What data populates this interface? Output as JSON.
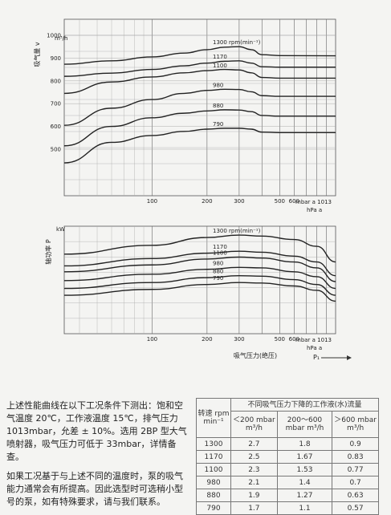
{
  "chart_data": [
    {
      "type": "line",
      "ylabel": "吸气量 v",
      "yunit": "m³/h",
      "xunit": "mbar a 1013",
      "xunit2": "hPa a",
      "yticks": [
        500,
        600,
        700,
        800,
        900,
        1000
      ],
      "xticks": [
        100,
        200,
        300,
        400,
        500,
        600,
        700,
        800,
        900,
        1000
      ],
      "xtick_labels": [
        "100",
        "200",
        "300",
        "500",
        "600"
      ],
      "series": [
        {
          "name": "1300 rpm(min⁻¹)",
          "x": [
            33,
            60,
            100,
            150,
            200,
            250,
            300,
            350,
            400,
            500,
            1013
          ],
          "y": [
            873,
            888,
            905,
            922,
            937,
            948,
            950,
            937,
            915,
            911,
            910
          ]
        },
        {
          "name": "1170",
          "x": [
            33,
            60,
            100,
            150,
            200,
            250,
            300,
            350,
            400,
            500,
            1013
          ],
          "y": [
            820,
            834,
            850,
            866,
            878,
            886,
            888,
            878,
            862,
            860,
            860
          ]
        },
        {
          "name": "1100",
          "x": [
            33,
            60,
            100,
            150,
            200,
            250,
            300,
            350,
            400,
            500,
            1013
          ],
          "y": [
            745,
            795,
            817,
            835,
            845,
            850,
            848,
            835,
            815,
            812,
            812
          ]
        },
        {
          "name": "980",
          "x": [
            33,
            60,
            100,
            150,
            200,
            250,
            300,
            350,
            400,
            500,
            1013
          ],
          "y": [
            605,
            680,
            718,
            745,
            758,
            763,
            762,
            752,
            735,
            732,
            732
          ]
        },
        {
          "name": "880",
          "x": [
            33,
            60,
            100,
            150,
            200,
            250,
            300,
            350,
            400,
            500,
            1013
          ],
          "y": [
            515,
            600,
            638,
            658,
            668,
            673,
            672,
            665,
            648,
            645,
            645
          ]
        },
        {
          "name": "790",
          "x": [
            33,
            60,
            100,
            150,
            200,
            250,
            300,
            350,
            400,
            500,
            1013
          ],
          "y": [
            440,
            530,
            560,
            578,
            588,
            592,
            592,
            588,
            575,
            573,
            573
          ]
        }
      ]
    },
    {
      "type": "line",
      "ylabel": "轴功率 P",
      "yunit": "kW",
      "xunit": "mbar a 1013",
      "xunit2": "hPa a",
      "xlabel": "吸气压力(绝压)",
      "xsymbol": "P₁",
      "xticks": [
        100,
        200,
        300,
        400,
        500,
        600,
        700,
        800,
        900,
        1000
      ],
      "xtick_labels": [
        "100",
        "200",
        "300",
        "500",
        "600"
      ],
      "series": [
        {
          "name": "1300 rpm(min⁻¹)",
          "x": [
            33,
            100,
            200,
            300,
            400,
            600,
            800,
            1013
          ],
          "y": [
            0.78,
            0.87,
            0.95,
            0.975,
            0.965,
            0.93,
            0.86,
            0.7
          ]
        },
        {
          "name": "1170",
          "x": [
            33,
            100,
            200,
            300,
            400,
            600,
            800,
            1013
          ],
          "y": [
            0.66,
            0.735,
            0.79,
            0.81,
            0.8,
            0.76,
            0.7,
            0.56
          ]
        },
        {
          "name": "1100",
          "x": [
            33,
            100,
            200,
            300,
            400,
            600,
            800,
            1013
          ],
          "y": [
            0.6,
            0.67,
            0.73,
            0.75,
            0.74,
            0.7,
            0.64,
            0.5
          ]
        },
        {
          "name": "980",
          "x": [
            33,
            100,
            200,
            300,
            400,
            600,
            800,
            1013
          ],
          "y": [
            0.51,
            0.575,
            0.625,
            0.645,
            0.64,
            0.6,
            0.55,
            0.43
          ]
        },
        {
          "name": "880",
          "x": [
            33,
            100,
            200,
            300,
            400,
            600,
            800,
            1013
          ],
          "y": [
            0.43,
            0.49,
            0.54,
            0.56,
            0.555,
            0.52,
            0.47,
            0.36
          ]
        },
        {
          "name": "790",
          "x": [
            33,
            100,
            200,
            300,
            400,
            600,
            800,
            1013
          ],
          "y": [
            0.36,
            0.42,
            0.47,
            0.49,
            0.485,
            0.455,
            0.41,
            0.3
          ]
        }
      ]
    }
  ],
  "text": {
    "p1": "上述性能曲线在以下工况条件下测出：饱和空气温度 20℃，工作液温度 15℃，排气压力 1013mbar，允差 ± 10%。选用 2BP 型大气喷射器，吸气压力可低于 33mbar，详情备查。",
    "p2": "如果工况基于与上述不同的温度时，泵的吸气能力通常会有所提高。因此选型时可选稍小型号的泵，如有特殊要求，请与我们联系。"
  },
  "table": {
    "speed_header": "转速 rpm min⁻¹",
    "group_header": "不同吸气压力下降的工作液(水)流量",
    "col_headers": [
      "＜200 mbar m³/h",
      "200～600 mbar m³/h",
      "＞600 mbar m³/h"
    ],
    "rows": [
      [
        "1300",
        "2.7",
        "1.8",
        "0.9"
      ],
      [
        "1170",
        "2.5",
        "1.67",
        "0.83"
      ],
      [
        "1100",
        "2.3",
        "1.53",
        "0.77"
      ],
      [
        "980",
        "2.1",
        "1.4",
        "0.7"
      ],
      [
        "880",
        "1.9",
        "1.27",
        "0.63"
      ],
      [
        "790",
        "1.7",
        "1.1",
        "0.57"
      ]
    ]
  }
}
